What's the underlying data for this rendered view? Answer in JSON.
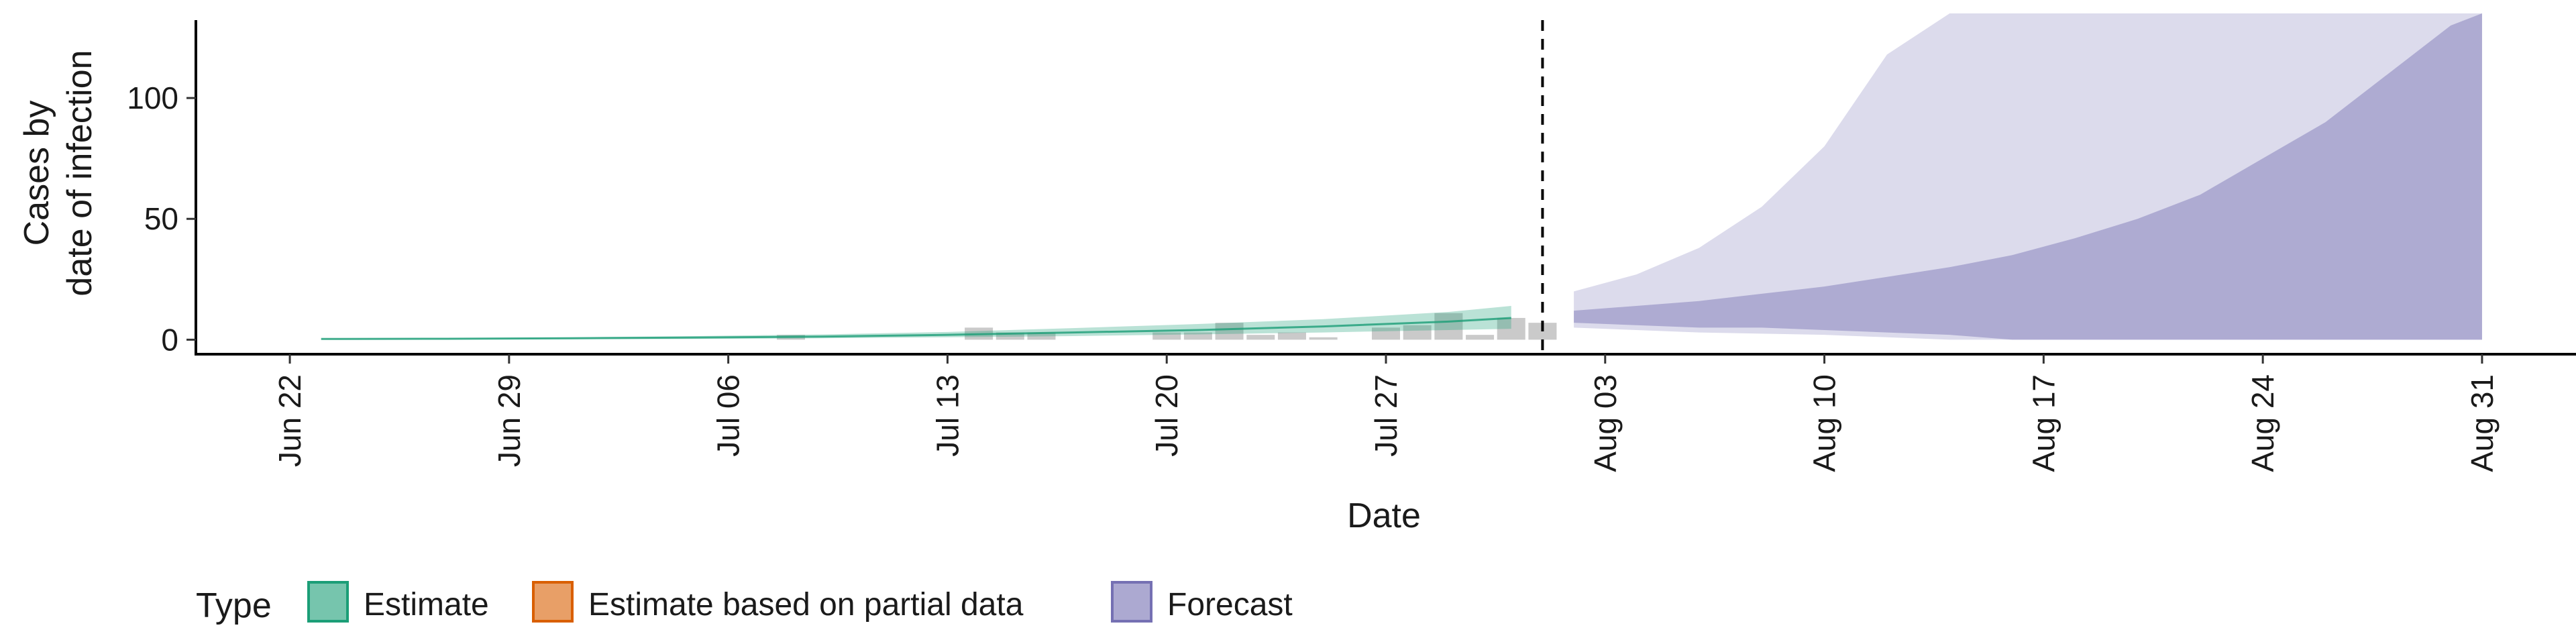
{
  "chart_data": {
    "type": "area",
    "xlabel": "Date",
    "ylabel_lines": [
      "Cases by",
      "date of infection"
    ],
    "x_ticks": [
      "Jun 22",
      "Jun 29",
      "Jul 06",
      "Jul 13",
      "Jul 20",
      "Jul 27",
      "Aug 03",
      "Aug 10",
      "Aug 17",
      "Aug 24",
      "Aug 31"
    ],
    "y_ticks": [
      0,
      50,
      100
    ],
    "ylim": [
      -6,
      135
    ],
    "xlim_days_from_jun22": [
      -3,
      73
    ],
    "forecast_start_marker": "2020-08-01",
    "grid": false,
    "legend": {
      "position": "bottom-left",
      "title": "Type",
      "entries": [
        {
          "label": "Estimate",
          "color": "#1b9e77"
        },
        {
          "label": "Estimate based on partial data",
          "color": "#d95f02"
        },
        {
          "label": "Forecast",
          "color": "#7570b3"
        }
      ]
    },
    "reported_cases": {
      "dates": [
        "2020-07-08",
        "2020-07-14",
        "2020-07-15",
        "2020-07-16",
        "2020-07-20",
        "2020-07-21",
        "2020-07-22",
        "2020-07-23",
        "2020-07-24",
        "2020-07-25",
        "2020-07-27",
        "2020-07-28",
        "2020-07-29",
        "2020-07-30",
        "2020-07-31",
        "2020-08-01"
      ],
      "values": [
        2,
        5,
        3,
        3,
        3,
        3,
        7,
        2,
        3,
        1,
        5,
        6,
        11,
        2,
        9,
        7
      ]
    },
    "estimate": {
      "dates": [
        "2020-06-23",
        "2020-06-27",
        "2020-07-01",
        "2020-07-05",
        "2020-07-09",
        "2020-07-13",
        "2020-07-17",
        "2020-07-21",
        "2020-07-25",
        "2020-07-29",
        "2020-07-31"
      ],
      "median": [
        0.3,
        0.4,
        0.6,
        0.9,
        1.3,
        2,
        3,
        4,
        5.5,
        7.5,
        9
      ],
      "lower_90": [
        0,
        0.1,
        0.2,
        0.3,
        0.6,
        1,
        1.5,
        2.2,
        3,
        4,
        4.5
      ],
      "upper_90": [
        0.5,
        0.7,
        1,
        1.5,
        2.2,
        3.2,
        4.8,
        6.5,
        8.5,
        11.5,
        14
      ]
    },
    "forecast": {
      "dates": [
        "2020-08-02",
        "2020-08-04",
        "2020-08-06",
        "2020-08-08",
        "2020-08-10",
        "2020-08-12",
        "2020-08-14",
        "2020-08-16",
        "2020-08-18",
        "2020-08-20",
        "2020-08-22",
        "2020-08-24",
        "2020-08-26",
        "2020-08-28",
        "2020-08-30",
        "2020-08-31"
      ],
      "lower_90": [
        5,
        4,
        3,
        2.5,
        2,
        1,
        0,
        0,
        0,
        0,
        0,
        0,
        0,
        0,
        0,
        0
      ],
      "upper_90": [
        20,
        27,
        38,
        55,
        80,
        118,
        135,
        135,
        135,
        135,
        135,
        135,
        135,
        135,
        135,
        135
      ],
      "lower_50": [
        7,
        6,
        5,
        5,
        4,
        3,
        2,
        0,
        0,
        0,
        0,
        0,
        0,
        0,
        0,
        0
      ],
      "upper_50": [
        12,
        14,
        16,
        19,
        22,
        26,
        30,
        35,
        42,
        50,
        60,
        75,
        90,
        110,
        130,
        135
      ]
    }
  }
}
